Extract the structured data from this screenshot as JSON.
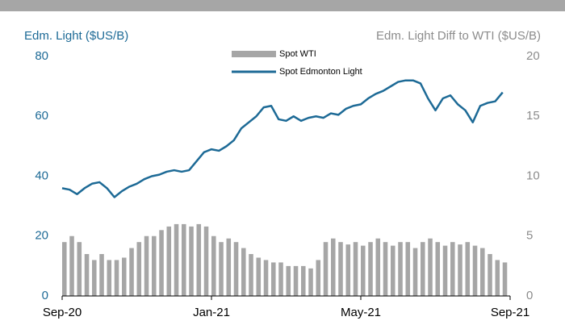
{
  "chart_data": {
    "type": "bar-line",
    "y_title": "Edm. Light ($US/B)",
    "y2_title": "Edm. Light Diff to WTI ($US/B)",
    "x": [
      0,
      0.2,
      0.4,
      0.6,
      0.8,
      1.0,
      1.2,
      1.4,
      1.6,
      1.8,
      2.0,
      2.2,
      2.4,
      2.6,
      2.8,
      3.0,
      3.2,
      3.4,
      3.6,
      3.8,
      4.0,
      4.2,
      4.4,
      4.6,
      4.8,
      5.0,
      5.2,
      5.4,
      5.6,
      5.8,
      6.0,
      6.2,
      6.4,
      6.6,
      6.8,
      7.0,
      7.2,
      7.4,
      7.6,
      7.8,
      8.0,
      8.2,
      8.4,
      8.6,
      8.8,
      9.0,
      9.2,
      9.4,
      9.6,
      9.8,
      10.0,
      10.2,
      10.4,
      10.6,
      10.8,
      11.0,
      11.2,
      11.4,
      11.6,
      11.8
    ],
    "xlim": [
      0,
      12
    ],
    "xticks": [
      {
        "value": 0,
        "label": "Sep-20"
      },
      {
        "value": 4,
        "label": "Jan-21"
      },
      {
        "value": 8,
        "label": "May-21"
      },
      {
        "value": 12,
        "label": "Sep-21"
      }
    ],
    "ylim": [
      0,
      80
    ],
    "yticks": [
      0,
      20,
      40,
      60,
      80
    ],
    "y2lim": [
      0,
      20
    ],
    "y2ticks": [
      0,
      5,
      10,
      15,
      20
    ],
    "series": [
      {
        "name": "Spot WTI",
        "color": "#a6a6a6",
        "kind": "bar",
        "axis": "y2",
        "values": [
          4.5,
          5,
          4.5,
          3.5,
          3,
          3.5,
          3,
          3,
          3.2,
          4,
          4.5,
          5,
          5,
          5.5,
          5.8,
          6,
          6,
          5.8,
          6,
          5.8,
          5,
          4.5,
          4.8,
          4.5,
          4,
          3.5,
          3.2,
          3,
          2.8,
          2.8,
          2.5,
          2.5,
          2.5,
          2.3,
          3,
          4.5,
          4.8,
          4.5,
          4.3,
          4.5,
          4.2,
          4.5,
          4.8,
          4.5,
          4.2,
          4.5,
          4.5,
          4,
          4.5,
          4.8,
          4.5,
          4.2,
          4.5,
          4.3,
          4.5,
          4.2,
          4,
          3.5,
          3,
          2.8
        ]
      },
      {
        "name": "Spot Edmonton Light",
        "color": "#1d6a96",
        "kind": "line",
        "values": [
          36,
          35.5,
          34,
          36,
          37.5,
          38,
          36,
          33,
          35,
          36.5,
          37.5,
          39,
          40,
          40.5,
          41.5,
          42,
          41.5,
          42,
          45,
          48,
          49,
          48.5,
          50,
          52,
          56,
          58,
          60,
          63,
          63.5,
          59,
          58.5,
          60,
          58.5,
          59.5,
          60,
          59.5,
          61,
          60.5,
          62.5,
          63.5,
          64,
          66,
          67.5,
          68.5,
          70,
          71.5,
          72,
          72,
          71,
          66,
          62,
          66,
          67,
          64,
          62,
          58,
          63.5,
          64.5,
          65,
          68
        ]
      }
    ]
  }
}
